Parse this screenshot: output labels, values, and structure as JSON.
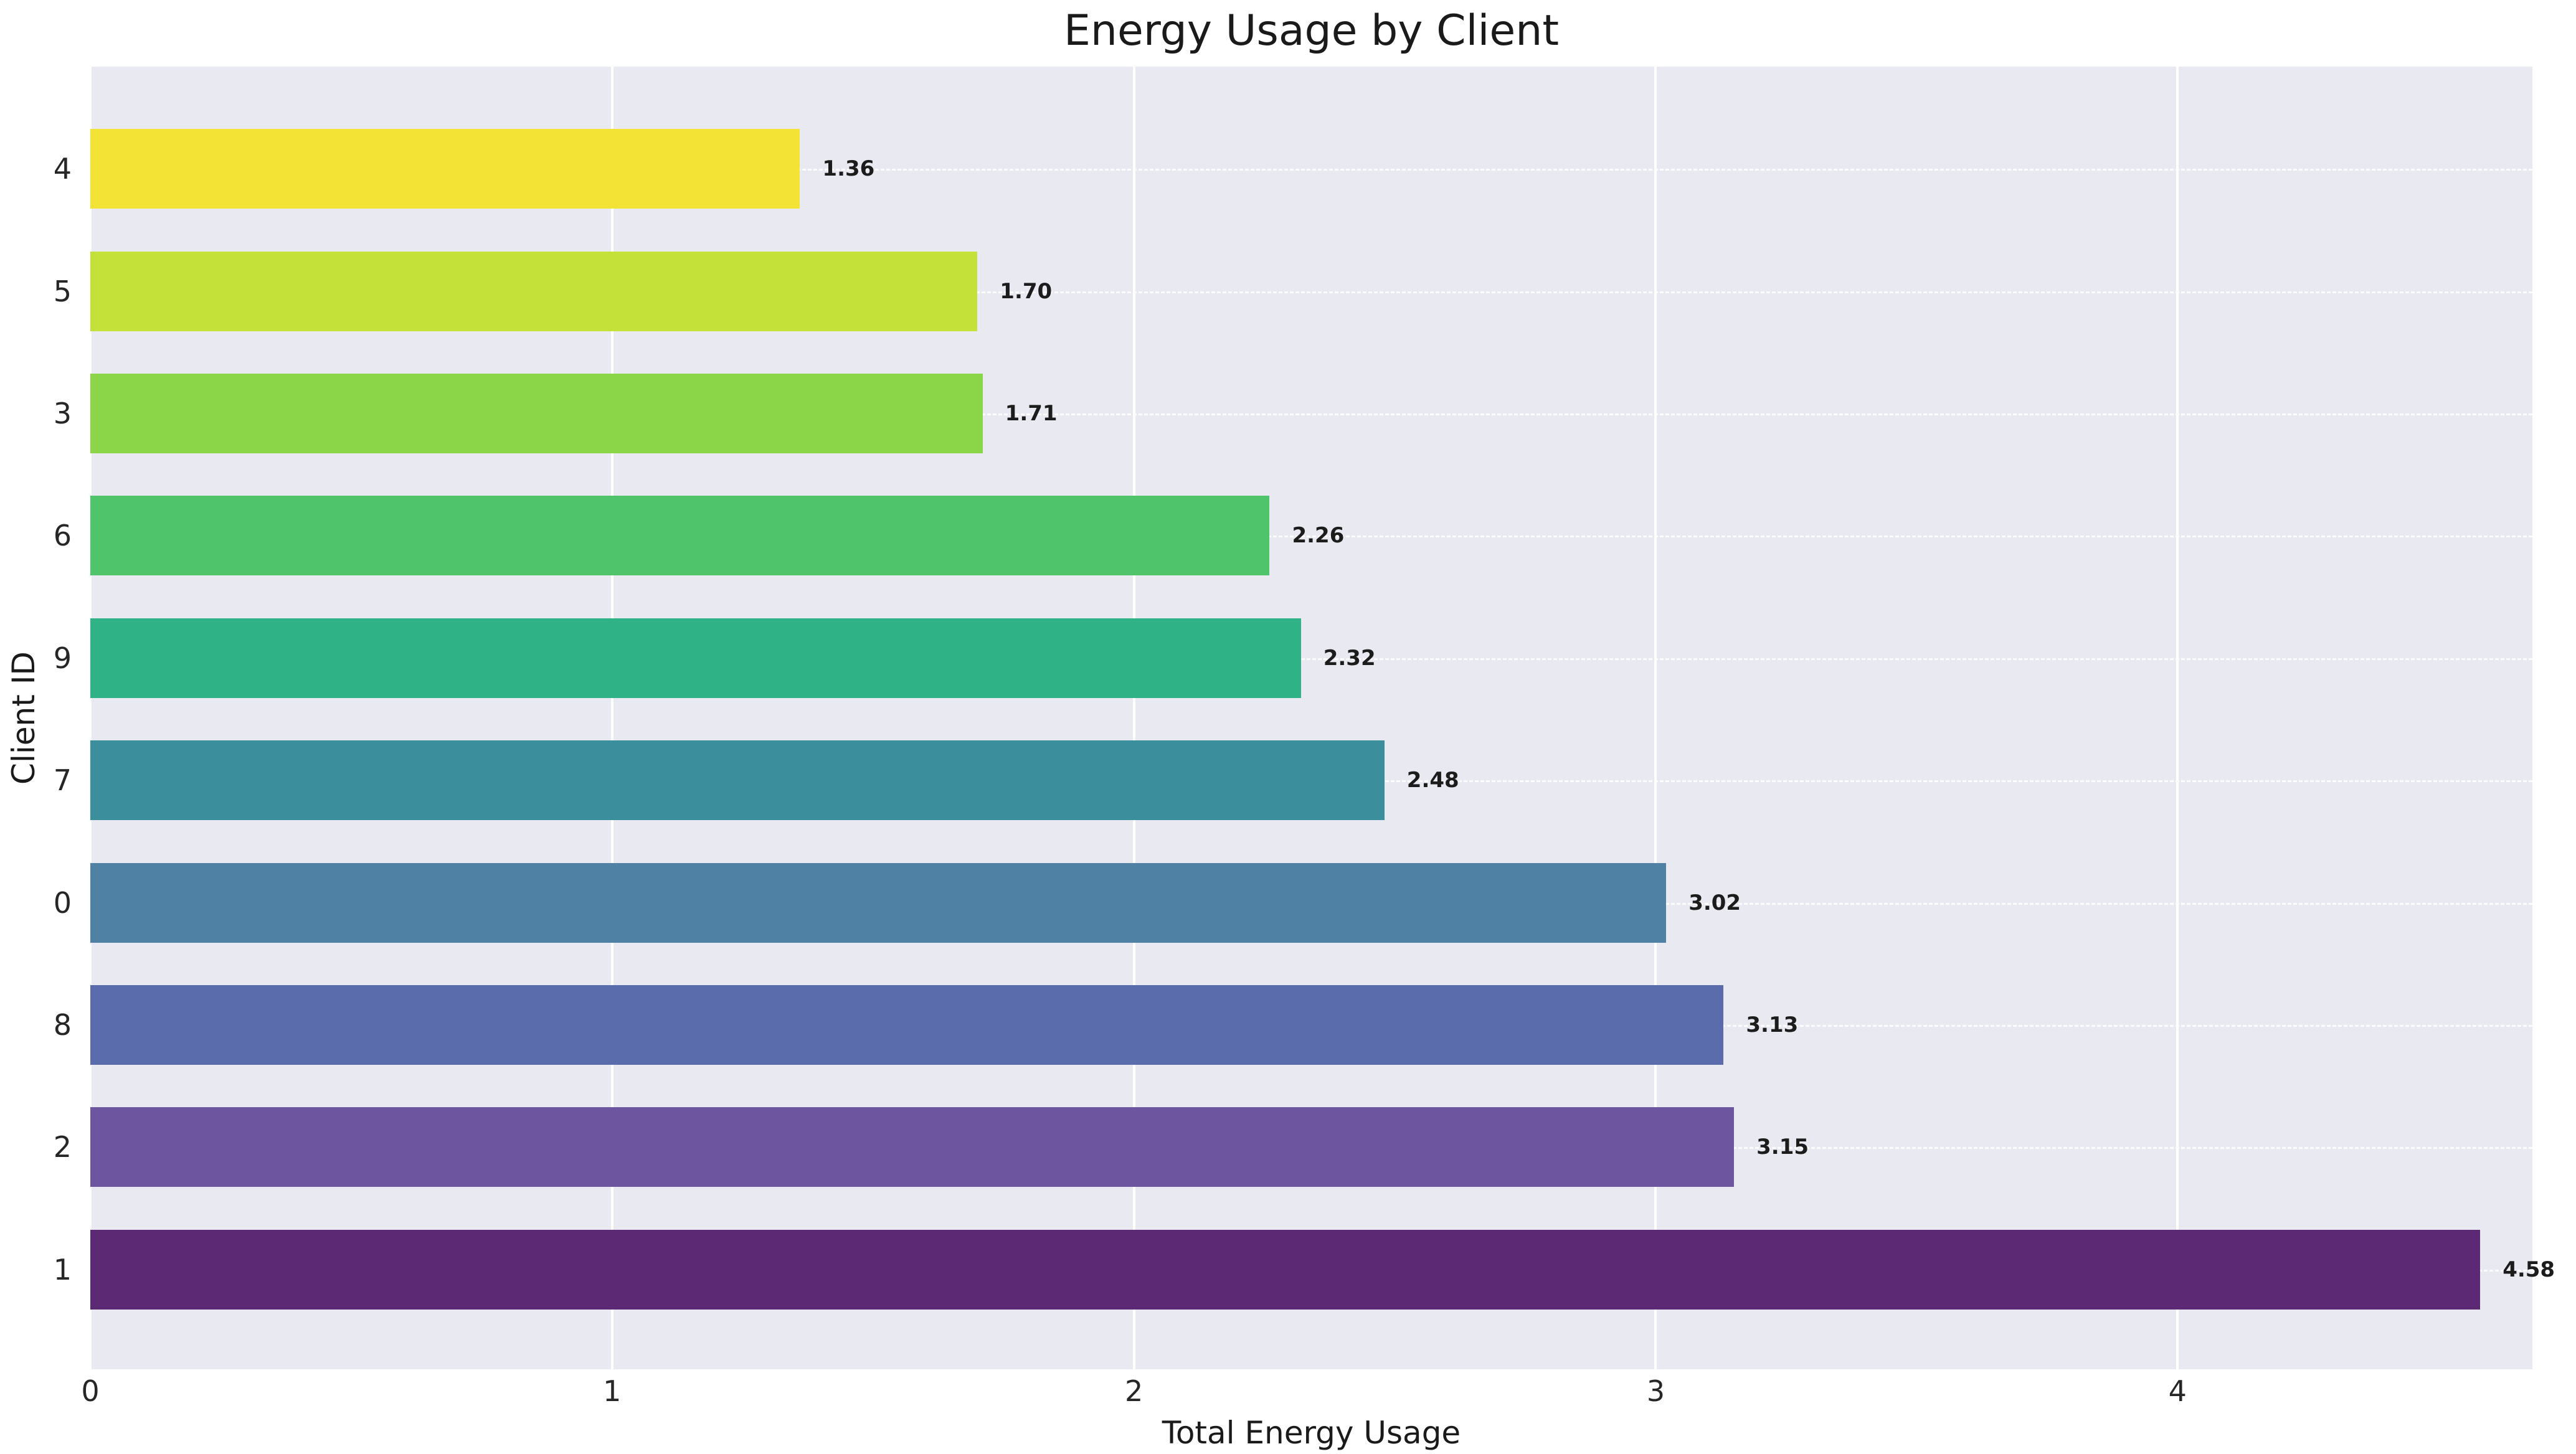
{
  "chart_data": {
    "type": "bar",
    "orientation": "horizontal",
    "title": "Energy Usage by Client",
    "xlabel": "Total Energy Usage",
    "ylabel": "Client ID",
    "categories": [
      "4",
      "5",
      "3",
      "6",
      "9",
      "7",
      "0",
      "8",
      "2",
      "1"
    ],
    "values": [
      1.36,
      1.7,
      1.71,
      2.26,
      2.32,
      2.48,
      3.02,
      3.13,
      3.15,
      4.58
    ],
    "value_labels": [
      "1.36",
      "1.70",
      "1.71",
      "2.26",
      "2.32",
      "2.48",
      "3.02",
      "3.13",
      "3.15",
      "4.58"
    ],
    "bar_colors": [
      "#f2e334",
      "#c3e138",
      "#8bd549",
      "#50c46a",
      "#2fb286",
      "#3b8f9d",
      "#4e81a4",
      "#5a6cab",
      "#6e55a0",
      "#5c2a75"
    ],
    "xlim": [
      0,
      4.68
    ],
    "xticks": [
      0,
      1,
      2,
      3,
      4
    ],
    "grid": true,
    "legend": "none",
    "plot_bg": "#e9e9f1",
    "grid_color": "#ffffff",
    "text_color": "#262626"
  }
}
